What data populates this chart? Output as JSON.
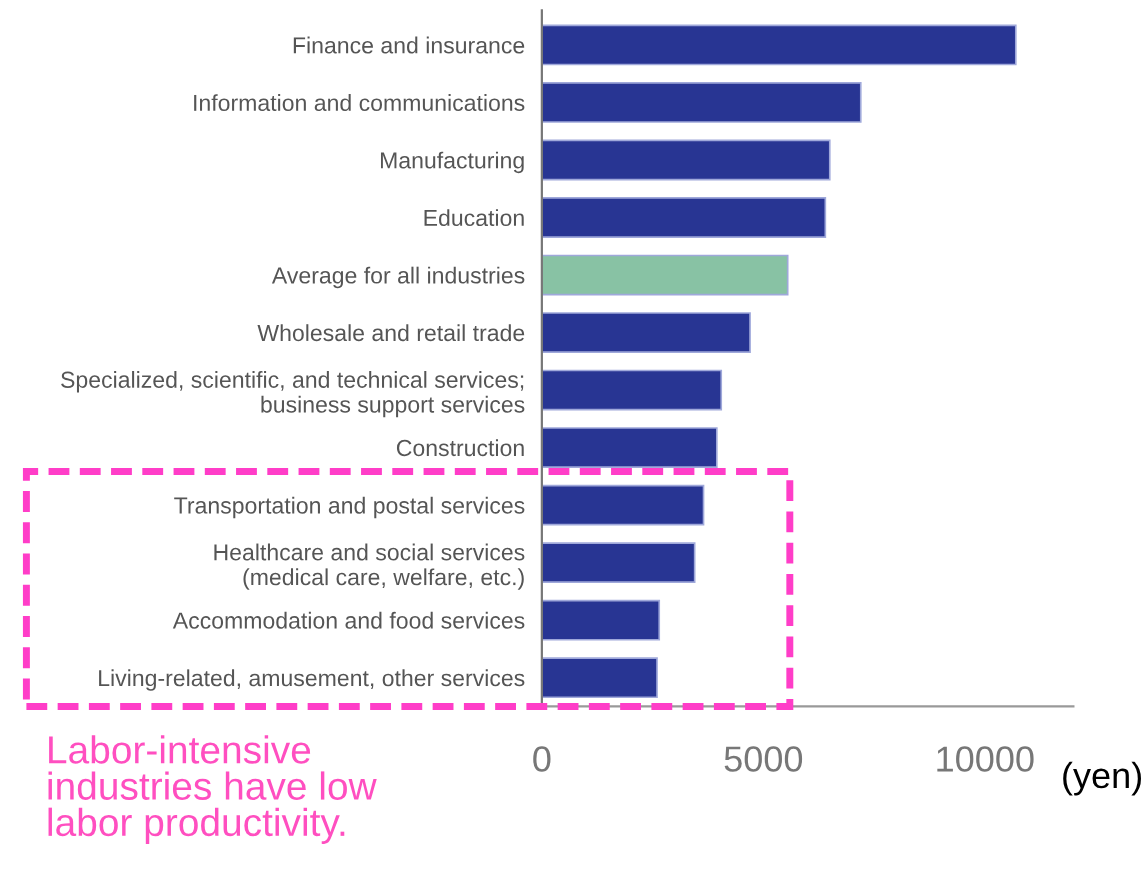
{
  "chart_data": {
    "type": "bar",
    "orientation": "horizontal",
    "categories": [
      "Finance and insurance",
      "Information and communications",
      "Manufacturing",
      "Education",
      "Average for all industries",
      "Wholesale and retail trade",
      "Specialized, scientific, and technical services;\nbusiness support services",
      "Construction",
      "Transportation and postal services",
      "Healthcare and social services\n(medical care, welfare, etc.)",
      "Accommodation and food services",
      "Living-related, amusement, other services"
    ],
    "values": [
      10700,
      7200,
      6500,
      6400,
      5550,
      4700,
      4050,
      3950,
      3650,
      3450,
      2650,
      2600
    ],
    "colors": [
      "#283593",
      "#283593",
      "#283593",
      "#283593",
      "#88c2a4",
      "#283593",
      "#283593",
      "#283593",
      "#283593",
      "#283593",
      "#283593",
      "#283593"
    ],
    "xlim": [
      0,
      12000
    ],
    "xticks": [
      0,
      5000,
      10000
    ],
    "xlabel": "(yen)",
    "grid": false,
    "annotations": [
      "Labor-intensive\nindustries have low\nlabor productivity."
    ]
  }
}
